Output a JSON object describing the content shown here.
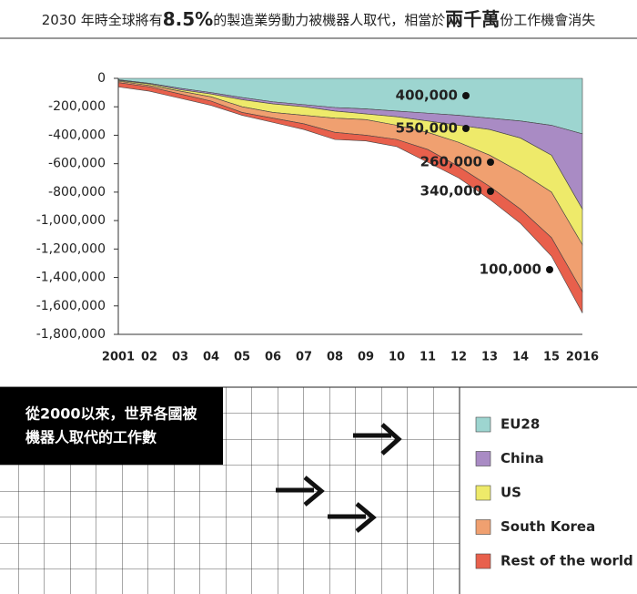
{
  "chart_data": {
    "type": "stacked_area",
    "title_parts": [
      "2030 年時全球將有",
      "8.5%",
      "的製造業勞動力被機器人取代，相當於",
      "兩千萬",
      "份工作機會消失"
    ],
    "subtitle_lines": [
      "從2000以來，世界各國被",
      "機器人取代的工作數"
    ],
    "categories": [
      "2001",
      "02",
      "03",
      "04",
      "05",
      "06",
      "07",
      "08",
      "09",
      "10",
      "11",
      "12",
      "13",
      "14",
      "15",
      "2016"
    ],
    "series": [
      {
        "name": "EU28",
        "color": "#9dd5d0",
        "values": [
          -10000,
          -35000,
          -70000,
          -100000,
          -135000,
          -165000,
          -185000,
          -205000,
          -215000,
          -230000,
          -245000,
          -260000,
          -280000,
          -300000,
          -330000,
          -390000
        ]
      },
      {
        "name": "China",
        "color": "#a98bc4",
        "values": [
          -5000,
          -5000,
          -10000,
          -10000,
          -15000,
          -15000,
          -15000,
          -25000,
          -35000,
          -40000,
          -55000,
          -70000,
          -80000,
          -120000,
          -210000,
          -530000
        ]
      },
      {
        "name": "US",
        "color": "#eeea6a",
        "values": [
          -5000,
          -10000,
          -10000,
          -20000,
          -50000,
          -60000,
          -60000,
          -50000,
          -40000,
          -60000,
          -80000,
          -120000,
          -180000,
          -240000,
          -260000,
          -250000
        ]
      },
      {
        "name": "South Korea",
        "color": "#f0a070",
        "values": [
          -10000,
          -10000,
          -20000,
          -30000,
          -40000,
          -40000,
          -60000,
          -100000,
          -110000,
          -100000,
          -120000,
          -170000,
          -220000,
          -260000,
          -320000,
          -330000
        ]
      },
      {
        "name": "Rest of the world",
        "color": "#e8604c",
        "values": [
          -30000,
          -30000,
          -30000,
          -30000,
          -20000,
          -30000,
          -40000,
          -50000,
          -40000,
          -50000,
          -90000,
          -80000,
          -90000,
          -100000,
          -130000,
          -150000
        ]
      }
    ],
    "annotations": [
      "400,000",
      "550,000",
      "260,000",
      "340,000",
      "100,000"
    ],
    "ylim": [
      -1800000,
      0
    ],
    "yticks": [
      0,
      {
        "value": -200000,
        "label": "-200,000"
      },
      {
        "value": -400000,
        "label": "-400,000"
      },
      {
        "value": -600000,
        "label": "-600,000"
      },
      {
        "value": -800000,
        "label": "-800,000"
      },
      {
        "value": -1000000,
        "label": "-1,000,000"
      },
      {
        "value": -1200000,
        "label": "-1,200,000"
      },
      {
        "value": -1400000,
        "label": "-1,400,000"
      },
      {
        "value": -1600000,
        "label": "-1,600,000"
      },
      {
        "value": -1800000,
        "label": "-1,800,000"
      }
    ]
  }
}
